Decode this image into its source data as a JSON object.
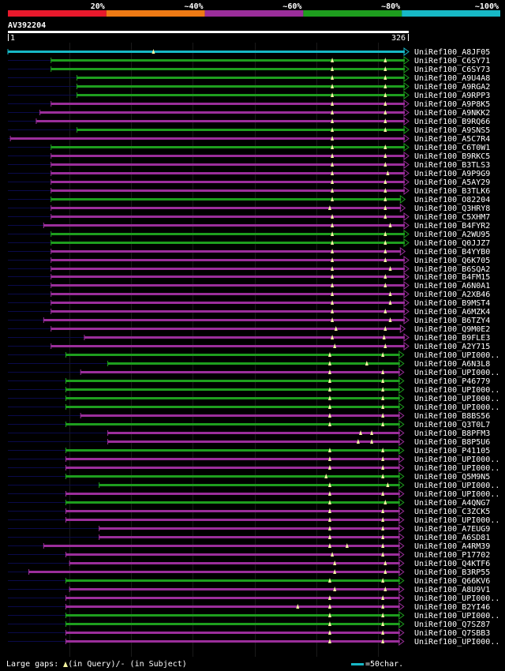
{
  "title": "AV392204",
  "query_length": 326,
  "axis": {
    "start_label": "1",
    "end_label": "326"
  },
  "identity_scale": [
    {
      "label": "20%",
      "color": "#e8192c"
    },
    {
      "label": "~40%",
      "color": "#ee7a14"
    },
    {
      "label": "~60%",
      "color": "#9b2e9b"
    },
    {
      "label": "~80%",
      "color": "#1e9e1e"
    },
    {
      "label": "~100%",
      "color": "#17b8c6"
    }
  ],
  "colors": {
    "cyan": "#17b8c6",
    "green": "#1e9e1e",
    "purple": "#9b2e9b",
    "navy": "#0a0a4a",
    "marker": "#f5f5a0",
    "grid": "#1a1a1a"
  },
  "legend": {
    "gaps_text": "Large gaps:",
    "query_text": "(in Query)/",
    "subject_dash": "-",
    "subject_text": " (in Subject)",
    "scale_text": "=50char."
  },
  "chart_data": {
    "type": "alignment-overview",
    "hits": [
      {
        "name": "UniRef100_A8JF05",
        "color": "cyan",
        "start": 1,
        "end": 326,
        "arrow": true,
        "gaps": [
          119
        ]
      },
      {
        "name": "UniRef100_C6SY71",
        "color": "green",
        "start": 36,
        "end": 326,
        "arrow": true,
        "gaps": [
          264,
          307
        ]
      },
      {
        "name": "UniRef100_C6SY73",
        "color": "green",
        "start": 36,
        "end": 326,
        "arrow": true,
        "gaps": [
          264,
          307
        ]
      },
      {
        "name": "UniRef100_A9U4A8",
        "color": "green",
        "start": 57,
        "end": 326,
        "arrow": true,
        "gaps": [
          264,
          307
        ]
      },
      {
        "name": "UniRef100_A9RGA2",
        "color": "green",
        "start": 57,
        "end": 326,
        "arrow": true,
        "gaps": [
          264,
          307
        ]
      },
      {
        "name": "UniRef100_A9RPP3",
        "color": "green",
        "start": 57,
        "end": 326,
        "arrow": true,
        "gaps": [
          264,
          307
        ]
      },
      {
        "name": "UniRef100_A9P8K5",
        "color": "purple",
        "start": 36,
        "end": 326,
        "arrow": true,
        "gaps": [
          264,
          307
        ]
      },
      {
        "name": "UniRef100_A9NKK2",
        "color": "purple",
        "start": 27,
        "end": 326,
        "arrow": true,
        "gaps": [
          264,
          307
        ]
      },
      {
        "name": "UniRef100_B9RQ66",
        "color": "purple",
        "start": 24,
        "end": 326,
        "arrow": true,
        "gaps": [
          264,
          307
        ]
      },
      {
        "name": "UniRef100_A9SNS5",
        "color": "green",
        "start": 57,
        "end": 326,
        "arrow": true,
        "gaps": [
          264,
          307
        ]
      },
      {
        "name": "UniRef100_A5C7R4",
        "color": "purple",
        "start": 3,
        "end": 326,
        "arrow": true,
        "gaps": [
          264
        ]
      },
      {
        "name": "UniRef100_C6T0W1",
        "color": "green",
        "start": 36,
        "end": 326,
        "arrow": true,
        "gaps": [
          264,
          307
        ]
      },
      {
        "name": "UniRef100_B9RKC5",
        "color": "purple",
        "start": 36,
        "end": 326,
        "arrow": true,
        "gaps": [
          264,
          307
        ]
      },
      {
        "name": "UniRef100_B3TLS3",
        "color": "purple",
        "start": 36,
        "end": 326,
        "arrow": true,
        "gaps": [
          264,
          307
        ]
      },
      {
        "name": "UniRef100_A9P9G9",
        "color": "purple",
        "start": 36,
        "end": 326,
        "arrow": true,
        "gaps": [
          264,
          309
        ]
      },
      {
        "name": "UniRef100_A5AY29",
        "color": "purple",
        "start": 36,
        "end": 326,
        "arrow": true,
        "gaps": [
          264,
          307
        ]
      },
      {
        "name": "UniRef100_B3TLK6",
        "color": "purple",
        "start": 36,
        "end": 326,
        "arrow": true,
        "gaps": [
          264,
          307
        ]
      },
      {
        "name": "UniRef100_O82204",
        "color": "green",
        "start": 36,
        "end": 323,
        "arrow": true,
        "gaps": [
          264,
          307
        ]
      },
      {
        "name": "UniRef100_Q3HRY8",
        "color": "purple",
        "start": 36,
        "end": 323,
        "arrow": true,
        "gaps": [
          262,
          307
        ]
      },
      {
        "name": "UniRef100_C5XHM7",
        "color": "purple",
        "start": 36,
        "end": 326,
        "arrow": true,
        "gaps": [
          264,
          307
        ]
      },
      {
        "name": "UniRef100_B4FYR2",
        "color": "purple",
        "start": 30,
        "end": 326,
        "arrow": true,
        "gaps": [
          264,
          311
        ]
      },
      {
        "name": "UniRef100_A2WU95",
        "color": "green",
        "start": 36,
        "end": 326,
        "arrow": true,
        "gaps": [
          264,
          307
        ]
      },
      {
        "name": "UniRef100_Q0JJZ7",
        "color": "green",
        "start": 36,
        "end": 326,
        "arrow": true,
        "gaps": [
          264,
          307
        ]
      },
      {
        "name": "UniRef100_B4YYB0",
        "color": "purple",
        "start": 36,
        "end": 323,
        "arrow": true,
        "gaps": [
          264,
          307
        ]
      },
      {
        "name": "UniRef100_Q6K705",
        "color": "purple",
        "start": 36,
        "end": 326,
        "arrow": true,
        "gaps": [
          264,
          307
        ]
      },
      {
        "name": "UniRef100_B6SQA2",
        "color": "purple",
        "start": 36,
        "end": 326,
        "arrow": true,
        "gaps": [
          264,
          311
        ]
      },
      {
        "name": "UniRef100_B4FM15",
        "color": "purple",
        "start": 36,
        "end": 326,
        "arrow": true,
        "gaps": [
          264,
          307
        ]
      },
      {
        "name": "UniRef100_A6N0A1",
        "color": "purple",
        "start": 36,
        "end": 326,
        "arrow": true,
        "gaps": [
          264,
          307
        ]
      },
      {
        "name": "UniRef100_A2XB46",
        "color": "purple",
        "start": 36,
        "end": 326,
        "arrow": true,
        "gaps": [
          264,
          311
        ]
      },
      {
        "name": "UniRef100_B9MST4",
        "color": "purple",
        "start": 36,
        "end": 326,
        "arrow": true,
        "gaps": [
          264,
          311
        ]
      },
      {
        "name": "UniRef100_A6MZK4",
        "color": "purple",
        "start": 36,
        "end": 326,
        "arrow": true,
        "gaps": [
          264,
          307
        ]
      },
      {
        "name": "UniRef100_B6TZY4",
        "color": "purple",
        "start": 30,
        "end": 326,
        "arrow": true,
        "gaps": [
          264,
          311
        ]
      },
      {
        "name": "UniRef100_Q9M0E2",
        "color": "purple",
        "start": 36,
        "end": 323,
        "arrow": true,
        "gaps": [
          267,
          307
        ]
      },
      {
        "name": "UniRef100_B9FLE3",
        "color": "purple",
        "start": 63,
        "end": 326,
        "arrow": true,
        "gaps": [
          264,
          306
        ]
      },
      {
        "name": "UniRef100_A2Y715",
        "color": "purple",
        "start": 36,
        "end": 326,
        "arrow": true,
        "gaps": [
          266,
          307
        ]
      },
      {
        "name": "UniRef100_UPI000..",
        "color": "green",
        "start": 48,
        "end": 322,
        "arrow": true,
        "gaps": [
          262,
          305
        ]
      },
      {
        "name": "UniRef100_A6N3L8",
        "color": "green",
        "start": 82,
        "end": 322,
        "arrow": true,
        "gaps": [
          262,
          292
        ]
      },
      {
        "name": "UniRef100_UPI000..",
        "color": "purple",
        "start": 60,
        "end": 322,
        "arrow": true,
        "gaps": [
          262,
          305
        ]
      },
      {
        "name": "UniRef100_P46779",
        "color": "green",
        "start": 48,
        "end": 322,
        "arrow": true,
        "gaps": [
          262,
          305
        ]
      },
      {
        "name": "UniRef100_UPI000..",
        "color": "green",
        "start": 48,
        "end": 322,
        "arrow": true,
        "gaps": [
          262,
          305
        ]
      },
      {
        "name": "UniRef100_UPI000..",
        "color": "green",
        "start": 48,
        "end": 322,
        "arrow": true,
        "gaps": [
          262,
          305
        ]
      },
      {
        "name": "UniRef100_UPI000..",
        "color": "green",
        "start": 48,
        "end": 322,
        "arrow": true,
        "gaps": [
          262,
          305
        ]
      },
      {
        "name": "UniRef100_B8BS56",
        "color": "purple",
        "start": 60,
        "end": 322,
        "arrow": true,
        "gaps": [
          262,
          305
        ]
      },
      {
        "name": "UniRef100_Q3T0L7",
        "color": "green",
        "start": 48,
        "end": 322,
        "arrow": true,
        "gaps": [
          262,
          305
        ]
      },
      {
        "name": "UniRef100_B8PFM3",
        "color": "purple",
        "start": 82,
        "end": 322,
        "arrow": true,
        "gaps": [
          287,
          296
        ]
      },
      {
        "name": "UniRef100_B8P5U6",
        "color": "purple",
        "start": 82,
        "end": 322,
        "arrow": true,
        "gaps": [
          285,
          296
        ]
      },
      {
        "name": "UniRef100_P41105",
        "color": "green",
        "start": 48,
        "end": 322,
        "arrow": true,
        "gaps": [
          262,
          305
        ]
      },
      {
        "name": "UniRef100_UPI000..",
        "color": "purple",
        "start": 48,
        "end": 322,
        "arrow": true,
        "gaps": [
          262,
          305
        ]
      },
      {
        "name": "UniRef100_UPI000..",
        "color": "purple",
        "start": 48,
        "end": 322,
        "arrow": true,
        "gaps": [
          262,
          305
        ]
      },
      {
        "name": "UniRef100_Q5M9N5",
        "color": "green",
        "start": 48,
        "end": 322,
        "arrow": true,
        "gaps": [
          259,
          305
        ]
      },
      {
        "name": "UniRef100_UPI000..",
        "color": "green",
        "start": 75,
        "end": 322,
        "arrow": true,
        "gaps": [
          262,
          309
        ]
      },
      {
        "name": "UniRef100_UPI000..",
        "color": "purple",
        "start": 48,
        "end": 322,
        "arrow": true,
        "gaps": [
          262,
          305
        ]
      },
      {
        "name": "UniRef100_A4QNG7",
        "color": "green",
        "start": 48,
        "end": 322,
        "arrow": true,
        "gaps": [
          262,
          307
        ]
      },
      {
        "name": "UniRef100_C3ZCK5",
        "color": "purple",
        "start": 48,
        "end": 322,
        "arrow": true,
        "gaps": [
          262,
          305
        ]
      },
      {
        "name": "UniRef100_UPI000..",
        "color": "purple",
        "start": 48,
        "end": 322,
        "arrow": true,
        "gaps": [
          262,
          305
        ]
      },
      {
        "name": "UniRef100_A7EUG9",
        "color": "purple",
        "start": 75,
        "end": 322,
        "arrow": true,
        "gaps": [
          262,
          305
        ]
      },
      {
        "name": "UniRef100_A6SD81",
        "color": "purple",
        "start": 75,
        "end": 322,
        "arrow": true,
        "gaps": [
          262,
          305
        ]
      },
      {
        "name": "UniRef100_A4RM39",
        "color": "purple",
        "start": 30,
        "end": 322,
        "arrow": true,
        "gaps": [
          262,
          276,
          305
        ]
      },
      {
        "name": "UniRef100_P17702",
        "color": "purple",
        "start": 48,
        "end": 322,
        "arrow": true,
        "gaps": [
          264,
          305
        ]
      },
      {
        "name": "UniRef100_Q4KTF6",
        "color": "purple",
        "start": 51,
        "end": 322,
        "arrow": true,
        "gaps": [
          266,
          307
        ]
      },
      {
        "name": "UniRef100_B3RP55",
        "color": "purple",
        "start": 18,
        "end": 322,
        "arrow": true,
        "gaps": [
          266,
          307
        ]
      },
      {
        "name": "UniRef100_Q66KV6",
        "color": "green",
        "start": 48,
        "end": 322,
        "arrow": true,
        "gaps": [
          262,
          305
        ]
      },
      {
        "name": "UniRef100_A8U9V1",
        "color": "purple",
        "start": 51,
        "end": 322,
        "arrow": true,
        "gaps": [
          266,
          307
        ]
      },
      {
        "name": "UniRef100_UPI000..",
        "color": "purple",
        "start": 48,
        "end": 322,
        "arrow": true,
        "gaps": [
          262,
          305
        ]
      },
      {
        "name": "UniRef100_B2YI46",
        "color": "purple",
        "start": 48,
        "end": 322,
        "arrow": true,
        "gaps": [
          236,
          262,
          305
        ]
      },
      {
        "name": "UniRef100_UPI000..",
        "color": "green",
        "start": 48,
        "end": 322,
        "arrow": true,
        "gaps": [
          262,
          305
        ]
      },
      {
        "name": "UniRef100_Q7SZ87",
        "color": "green",
        "start": 48,
        "end": 322,
        "arrow": true,
        "gaps": [
          262,
          305
        ]
      },
      {
        "name": "UniRef100_Q7SBB3",
        "color": "purple",
        "start": 48,
        "end": 322,
        "arrow": true,
        "gaps": [
          262,
          305
        ]
      },
      {
        "name": "UniRef100_UPI000..",
        "color": "purple",
        "start": 48,
        "end": 322,
        "arrow": true,
        "gaps": [
          262,
          305
        ]
      }
    ]
  }
}
